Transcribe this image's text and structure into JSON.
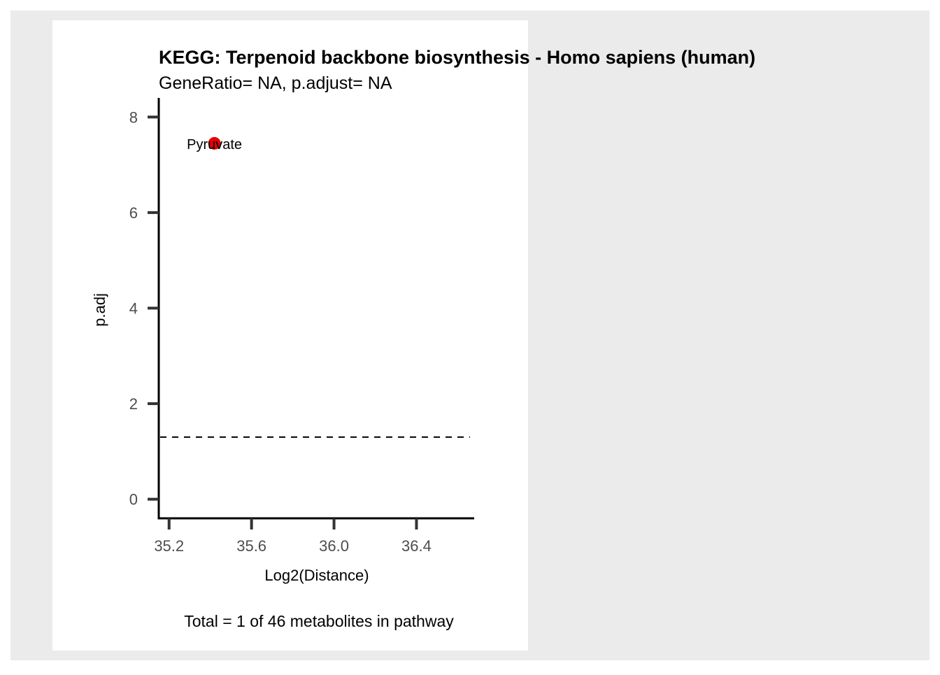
{
  "chart_data": {
    "type": "scatter",
    "title": "KEGG: Terpenoid backbone biosynthesis - Homo sapiens (human)",
    "subtitle": "GeneRatio= NA, p.adjust= NA",
    "xlabel": "Log2(Distance)",
    "ylabel": "p.adj",
    "caption": "Total = 1 of 46 metabolites in pathway",
    "xlim": [
      35.15,
      36.68
    ],
    "ylim": [
      -0.4,
      8.4
    ],
    "x_ticks": [
      35.2,
      35.6,
      36.0,
      36.4
    ],
    "x_tick_labels": [
      "35.2",
      "35.6",
      "36.0",
      "36.4"
    ],
    "y_ticks": [
      0,
      2,
      4,
      6,
      8
    ],
    "y_tick_labels": [
      "0",
      "2",
      "4",
      "6",
      "8"
    ],
    "threshold_line": {
      "y": 1.3,
      "style": "dashed",
      "color": "#000000"
    },
    "points": [
      {
        "label": "Pyruvate",
        "x": 35.42,
        "y": 7.45,
        "color": "#e60000"
      }
    ],
    "grid": false,
    "colors": {
      "outer_background": "#ebebeb",
      "panel_background": "#ffffff",
      "axis": "#000000",
      "tick": "#333333",
      "tick_label": "#4d4d4d",
      "point": "#e60000"
    }
  }
}
